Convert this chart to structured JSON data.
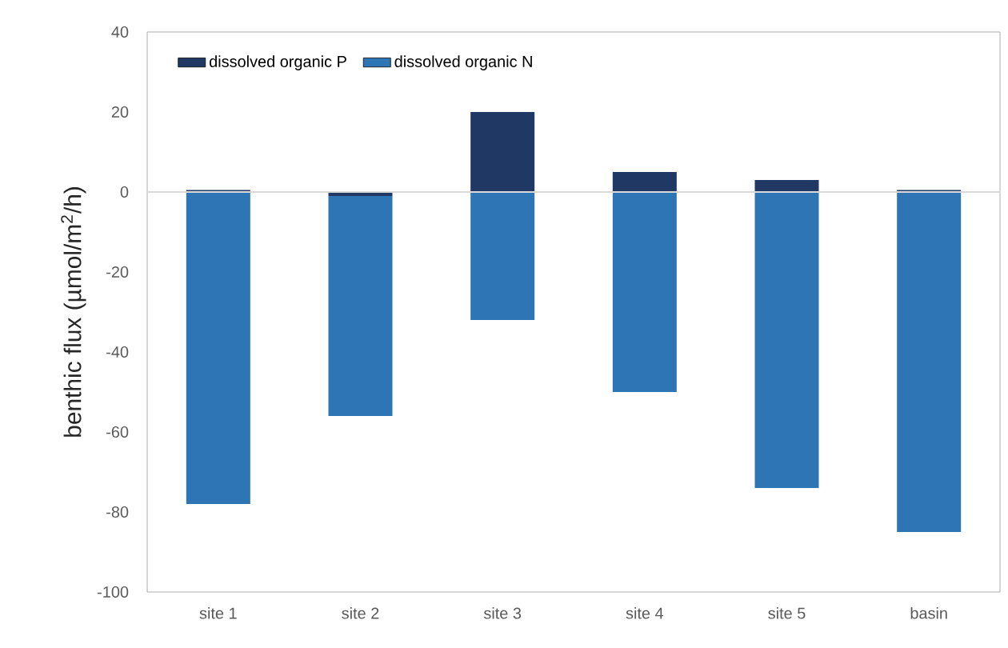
{
  "chart_data": {
    "type": "bar",
    "ylabel": "benthic flux (µmol/m$^{2}$/h)",
    "categories": [
      "site 1",
      "site 2",
      "site 3",
      "site 4",
      "site 5",
      "basin"
    ],
    "series": [
      {
        "name": "dissolved organic P",
        "color": "#1f3864",
        "values": [
          0.5,
          -1,
          20,
          5,
          3,
          0.5
        ]
      },
      {
        "name": "dissolved organic N",
        "color": "#2e75b6",
        "values": [
          -78,
          -55,
          -32,
          -50,
          -74,
          -85
        ]
      }
    ],
    "ylim": [
      -100,
      40
    ],
    "yticks": [
      -100,
      -80,
      -60,
      -40,
      -20,
      0,
      20,
      40
    ],
    "ref_lines": [
      {
        "axis": "y",
        "value": 0,
        "color": "#d9d9d9"
      }
    ],
    "stacked": true,
    "grid": false,
    "legend": "top left"
  }
}
